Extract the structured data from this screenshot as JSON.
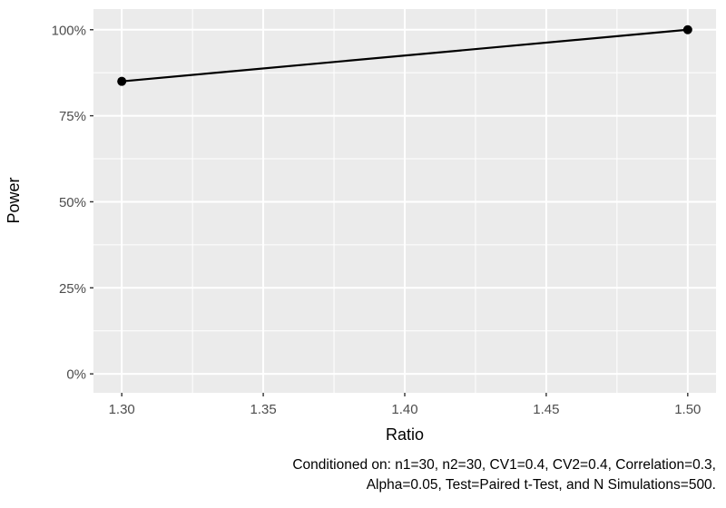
{
  "page": {
    "background": "#FFFFFF"
  },
  "chart_data": {
    "type": "line",
    "title": "",
    "xlabel": "Ratio",
    "ylabel": "Power",
    "series": [
      {
        "name": "Power by Ratio",
        "x": [
          1.3,
          1.5
        ],
        "y": [
          85,
          100
        ],
        "color": "#000000",
        "line_width": 2.2,
        "point_radius": 5
      }
    ],
    "xlim": [
      1.29,
      1.51
    ],
    "ylim": [
      -5.5,
      106
    ],
    "x_ticks": [
      1.3,
      1.35,
      1.4,
      1.45,
      1.5
    ],
    "x_tick_labels": [
      "1.30",
      "1.35",
      "1.40",
      "1.45",
      "1.50"
    ],
    "x_minor_ticks": [
      1.325,
      1.375,
      1.425,
      1.475
    ],
    "y_ticks": [
      0,
      25,
      50,
      75,
      100
    ],
    "y_tick_labels": [
      "0%",
      "25%",
      "50%",
      "75%",
      "100%"
    ],
    "y_minor_ticks": [
      12.5,
      37.5,
      62.5,
      87.5
    ],
    "grid": true,
    "legend": "none",
    "theme": "ggplot-grey",
    "panel_bg": "#EBEBEB",
    "grid_color": "#FFFFFF",
    "tick_mark_color": "#333333",
    "tick_label_color": "#4D4D4D",
    "axis_title_color": "#000000"
  },
  "caption": {
    "line1": "Conditioned on: n1=30, n2=30, CV1=0.4, CV2=0.4, Correlation=0.3,",
    "line2": "Alpha=0.05, Test=Paired t-Test, and N Simulations=500."
  }
}
